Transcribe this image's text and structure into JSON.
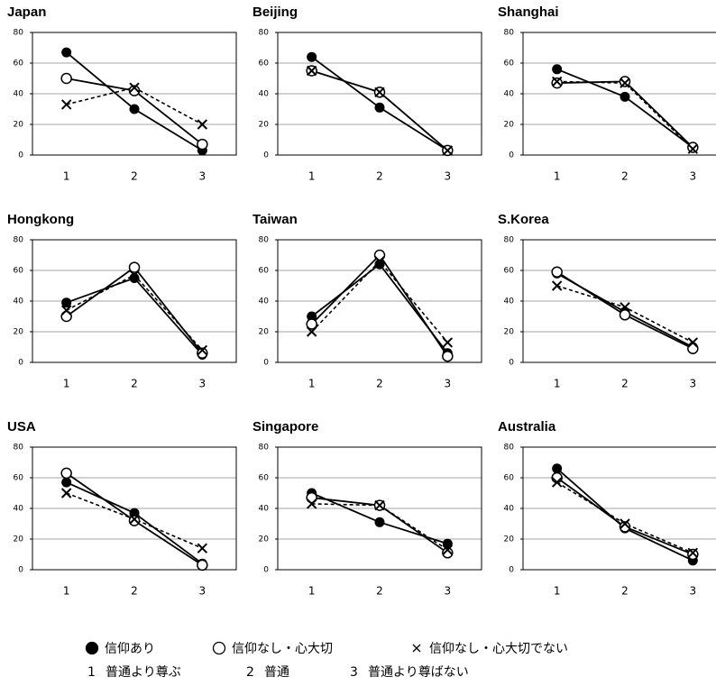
{
  "chart_data": [
    {
      "type": "line",
      "title": "Japan",
      "categories": [
        "1",
        "2",
        "3"
      ],
      "ylim": [
        0,
        80
      ],
      "yticks": [
        0,
        20,
        40,
        60,
        80
      ],
      "grid": true,
      "series": [
        {
          "marker": "filled",
          "line": "solid",
          "color": "#000000",
          "values": [
            67,
            30,
            3
          ]
        },
        {
          "marker": "open",
          "line": "solid",
          "color": "#000000",
          "values": [
            50,
            42,
            7
          ]
        },
        {
          "marker": "cross",
          "line": "dashed",
          "color": "#000000",
          "values": [
            33,
            44,
            20
          ]
        }
      ]
    },
    {
      "type": "line",
      "title": "Beijing",
      "categories": [
        "1",
        "2",
        "3"
      ],
      "ylim": [
        0,
        80
      ],
      "yticks": [
        0,
        20,
        40,
        60,
        80
      ],
      "grid": true,
      "series": [
        {
          "marker": "filled",
          "line": "solid",
          "color": "#000000",
          "values": [
            64,
            31,
            3
          ]
        },
        {
          "marker": "open",
          "line": "solid",
          "color": "#000000",
          "values": [
            55,
            41,
            3
          ]
        },
        {
          "marker": "cross",
          "line": "dashed",
          "color": "#000000",
          "values": [
            55,
            41,
            3
          ]
        }
      ]
    },
    {
      "type": "line",
      "title": "Shanghai",
      "categories": [
        "1",
        "2",
        "3"
      ],
      "ylim": [
        0,
        80
      ],
      "yticks": [
        0,
        20,
        40,
        60,
        80
      ],
      "grid": true,
      "series": [
        {
          "marker": "filled",
          "line": "solid",
          "color": "#000000",
          "values": [
            56,
            38,
            5
          ]
        },
        {
          "marker": "open",
          "line": "solid",
          "color": "#000000",
          "values": [
            47,
            48,
            5
          ]
        },
        {
          "marker": "cross",
          "line": "dashed",
          "color": "#000000",
          "values": [
            48,
            47,
            4
          ]
        }
      ]
    },
    {
      "type": "line",
      "title": "Hongkong",
      "categories": [
        "1",
        "2",
        "3"
      ],
      "ylim": [
        0,
        80
      ],
      "yticks": [
        0,
        20,
        40,
        60,
        80
      ],
      "grid": true,
      "series": [
        {
          "marker": "filled",
          "line": "solid",
          "color": "#000000",
          "values": [
            39,
            55,
            5
          ]
        },
        {
          "marker": "open",
          "line": "solid",
          "color": "#000000",
          "values": [
            30,
            62,
            6
          ]
        },
        {
          "marker": "cross",
          "line": "dashed",
          "color": "#000000",
          "values": [
            34,
            57,
            8
          ]
        }
      ]
    },
    {
      "type": "line",
      "title": "Taiwan",
      "categories": [
        "1",
        "2",
        "3"
      ],
      "ylim": [
        0,
        80
      ],
      "yticks": [
        0,
        20,
        40,
        60,
        80
      ],
      "grid": true,
      "series": [
        {
          "marker": "filled",
          "line": "solid",
          "color": "#000000",
          "values": [
            30,
            64,
            6
          ]
        },
        {
          "marker": "open",
          "line": "solid",
          "color": "#000000",
          "values": [
            25,
            70,
            4
          ]
        },
        {
          "marker": "cross",
          "line": "dashed",
          "color": "#000000",
          "values": [
            20,
            66,
            13
          ]
        }
      ]
    },
    {
      "type": "line",
      "title": "S.Korea",
      "categories": [
        "1",
        "2",
        "3"
      ],
      "ylim": [
        0,
        80
      ],
      "yticks": [
        0,
        20,
        40,
        60,
        80
      ],
      "grid": true,
      "series": [
        {
          "marker": "filled",
          "line": "solid",
          "color": "#000000",
          "values": [
            58,
            33,
            10
          ]
        },
        {
          "marker": "open",
          "line": "solid",
          "color": "#000000",
          "values": [
            59,
            31,
            9
          ]
        },
        {
          "marker": "cross",
          "line": "dashed",
          "color": "#000000",
          "values": [
            50,
            36,
            13
          ]
        }
      ]
    },
    {
      "type": "line",
      "title": "USA",
      "categories": [
        "1",
        "2",
        "3"
      ],
      "ylim": [
        0,
        80
      ],
      "yticks": [
        0,
        20,
        40,
        60,
        80
      ],
      "grid": true,
      "series": [
        {
          "marker": "filled",
          "line": "solid",
          "color": "#000000",
          "values": [
            57,
            37,
            4
          ]
        },
        {
          "marker": "open",
          "line": "solid",
          "color": "#000000",
          "values": [
            63,
            32,
            3
          ]
        },
        {
          "marker": "cross",
          "line": "dashed",
          "color": "#000000",
          "values": [
            50,
            33,
            14
          ]
        }
      ]
    },
    {
      "type": "line",
      "title": "Singapore",
      "categories": [
        "1",
        "2",
        "3"
      ],
      "ylim": [
        0,
        80
      ],
      "yticks": [
        0,
        20,
        40,
        60,
        80
      ],
      "grid": true,
      "series": [
        {
          "marker": "filled",
          "line": "solid",
          "color": "#000000",
          "values": [
            50,
            31,
            17
          ]
        },
        {
          "marker": "open",
          "line": "solid",
          "color": "#000000",
          "values": [
            47,
            42,
            11
          ]
        },
        {
          "marker": "cross",
          "line": "dashed",
          "color": "#000000",
          "values": [
            43,
            42,
            13
          ]
        }
      ]
    },
    {
      "type": "line",
      "title": "Australia",
      "categories": [
        "1",
        "2",
        "3"
      ],
      "ylim": [
        0,
        80
      ],
      "yticks": [
        0,
        20,
        40,
        60,
        80
      ],
      "grid": true,
      "series": [
        {
          "marker": "filled",
          "line": "solid",
          "color": "#000000",
          "values": [
            66,
            27,
            6
          ]
        },
        {
          "marker": "open",
          "line": "solid",
          "color": "#000000",
          "values": [
            60,
            28,
            10
          ]
        },
        {
          "marker": "cross",
          "line": "dashed",
          "color": "#000000",
          "values": [
            57,
            30,
            11
          ]
        }
      ]
    }
  ],
  "legend": {
    "entries": [
      "信仰あり",
      "信仰なし・心大切",
      "信仰なし・心大切でない"
    ]
  },
  "category_notes": [
    {
      "key": "1",
      "text": "普通より尊ぶ"
    },
    {
      "key": "2",
      "text": "普通"
    },
    {
      "key": "3",
      "text": "普通より尊ばない"
    }
  ]
}
